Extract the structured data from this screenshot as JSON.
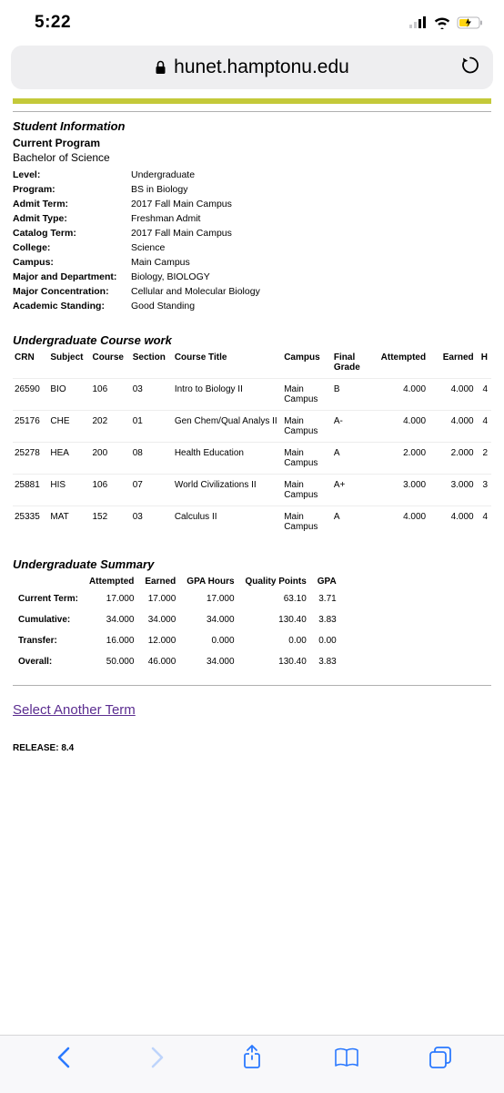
{
  "status": {
    "time": "5:22"
  },
  "browser": {
    "host": "hunet.hamptonu.edu"
  },
  "colors": {
    "accent": "#c4c939",
    "link": "#5b2d90",
    "toolbar_tint": "#2b79ff"
  },
  "student_info": {
    "section_title": "Student Information",
    "subtitle": "Current Program",
    "degree": "Bachelor of Science",
    "rows": [
      {
        "label": "Level:",
        "value": "Undergraduate"
      },
      {
        "label": "Program:",
        "value": "BS in Biology"
      },
      {
        "label": "Admit Term:",
        "value": "2017 Fall Main Campus"
      },
      {
        "label": "Admit Type:",
        "value": "Freshman Admit"
      },
      {
        "label": "Catalog Term:",
        "value": "2017 Fall Main Campus"
      },
      {
        "label": "College:",
        "value": "Science"
      },
      {
        "label": "Campus:",
        "value": "Main Campus"
      },
      {
        "label": "Major and Department:",
        "value": "Biology, BIOLOGY"
      },
      {
        "label": "Major Concentration:",
        "value": "Cellular and Molecular Biology"
      },
      {
        "label": "Academic Standing:",
        "value": "Good Standing"
      }
    ]
  },
  "coursework": {
    "section_title": "Undergraduate Course work",
    "columns": [
      "CRN",
      "Subject",
      "Course",
      "Section",
      "Course Title",
      "Campus",
      "Final Grade",
      "Attempted",
      "Earned",
      "H"
    ],
    "rows": [
      {
        "crn": "26590",
        "subj": "BIO",
        "course": "106",
        "sec": "03",
        "title": "Intro to Biology II",
        "campus": "Main Campus",
        "grade": "B",
        "att": "4.000",
        "earn": "4.000",
        "h": "4"
      },
      {
        "crn": "25176",
        "subj": "CHE",
        "course": "202",
        "sec": "01",
        "title": "Gen Chem/Qual Analys II",
        "campus": "Main Campus",
        "grade": "A-",
        "att": "4.000",
        "earn": "4.000",
        "h": "4"
      },
      {
        "crn": "25278",
        "subj": "HEA",
        "course": "200",
        "sec": "08",
        "title": "Health Education",
        "campus": "Main Campus",
        "grade": "A",
        "att": "2.000",
        "earn": "2.000",
        "h": "2"
      },
      {
        "crn": "25881",
        "subj": "HIS",
        "course": "106",
        "sec": "07",
        "title": "World Civilizations II",
        "campus": "Main Campus",
        "grade": "A+",
        "att": "3.000",
        "earn": "3.000",
        "h": "3"
      },
      {
        "crn": "25335",
        "subj": "MAT",
        "course": "152",
        "sec": "03",
        "title": "Calculus II",
        "campus": "Main Campus",
        "grade": "A",
        "att": "4.000",
        "earn": "4.000",
        "h": "4"
      }
    ]
  },
  "summary": {
    "section_title": "Undergraduate Summary",
    "columns": [
      "",
      "Attempted",
      "Earned",
      "GPA Hours",
      "Quality Points",
      "GPA"
    ],
    "rows": [
      {
        "label": "Current Term:",
        "att": "17.000",
        "earn": "17.000",
        "gpah": "17.000",
        "qp": "63.10",
        "gpa": "3.71"
      },
      {
        "label": "Cumulative:",
        "att": "34.000",
        "earn": "34.000",
        "gpah": "34.000",
        "qp": "130.40",
        "gpa": "3.83"
      },
      {
        "label": "Transfer:",
        "att": "16.000",
        "earn": "12.000",
        "gpah": "0.000",
        "qp": "0.00",
        "gpa": "0.00"
      },
      {
        "label": "Overall:",
        "att": "50.000",
        "earn": "46.000",
        "gpah": "34.000",
        "qp": "130.40",
        "gpa": "3.83"
      }
    ]
  },
  "link_text": "Select Another Term",
  "release": "RELEASE: 8.4"
}
